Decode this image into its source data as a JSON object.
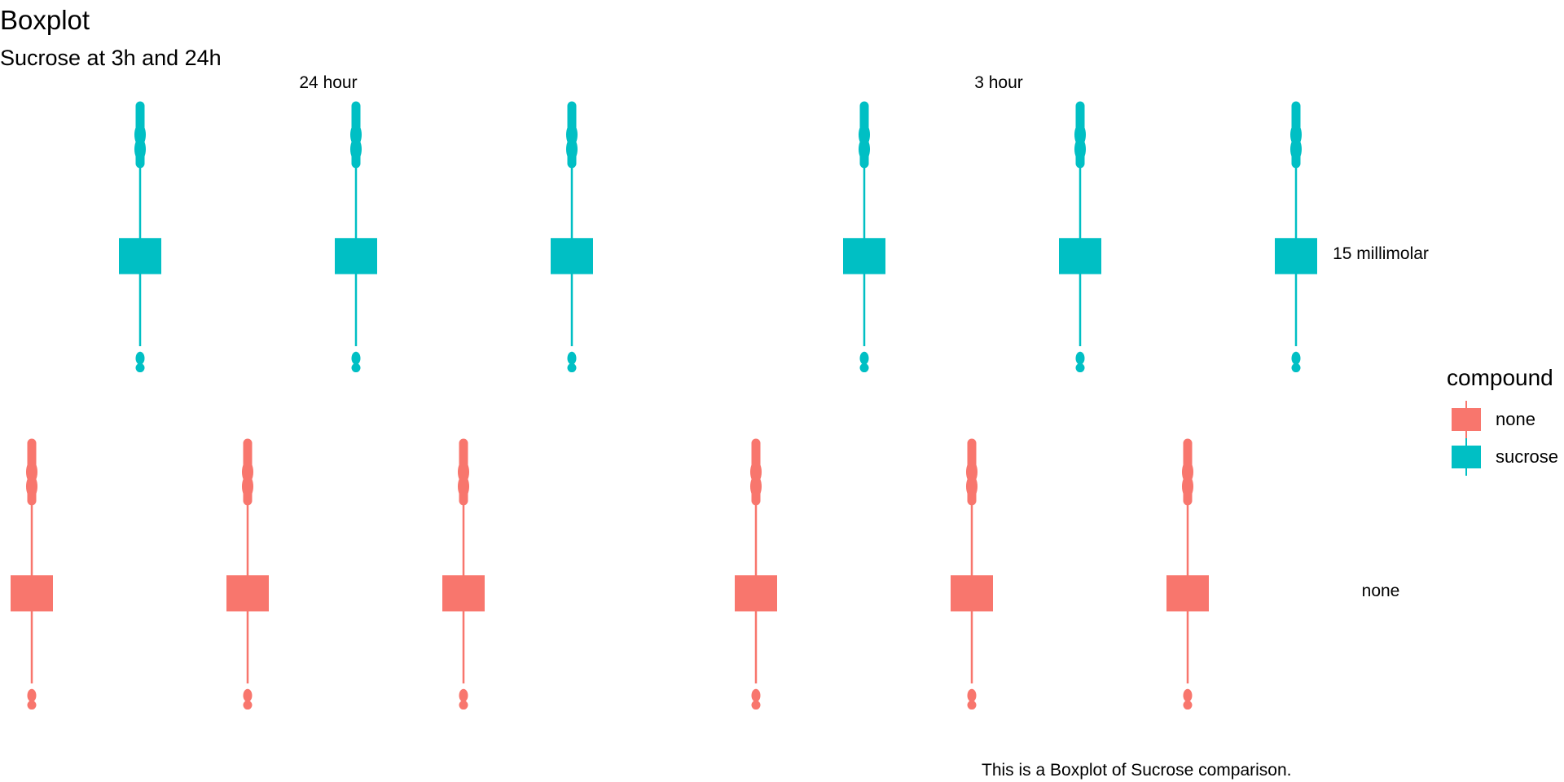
{
  "title": "Boxplot",
  "subtitle": "Sucrose at 3h and 24h",
  "caption": "This is a Boxplot of Sucrose comparison.",
  "legend": {
    "title": "compound",
    "items": [
      {
        "label": "none",
        "color": "#F8766D"
      },
      {
        "label": "sucrose",
        "color": "#00BFC4"
      }
    ]
  },
  "chart_data": {
    "type": "boxplot",
    "title": "Boxplot",
    "subtitle": "Sucrose at 3h and 24h",
    "caption": "This is a Boxplot of Sucrose comparison.",
    "facet_columns": [
      "24 hour",
      "3 hour"
    ],
    "facet_rows": [
      "15 millimolar",
      "none"
    ],
    "legend_title": "compound",
    "legend_position": "right",
    "grid": false,
    "axes_shown": false,
    "series": [
      {
        "name": "sucrose",
        "color": "#00BFC4",
        "facet_row": "15 millimolar"
      },
      {
        "name": "none",
        "color": "#F8766D",
        "facet_row": "none"
      }
    ],
    "boxes_per_panel": 3,
    "box_summary_relative": {
      "q1": 0.3,
      "median": 0.38,
      "q3": 0.45,
      "whisker_low": 0.0,
      "whisker_high": 0.76,
      "outliers_high_from": 0.76,
      "outliers_high_to": 1.0,
      "outliers_low": [
        -0.05,
        -0.09
      ]
    }
  }
}
